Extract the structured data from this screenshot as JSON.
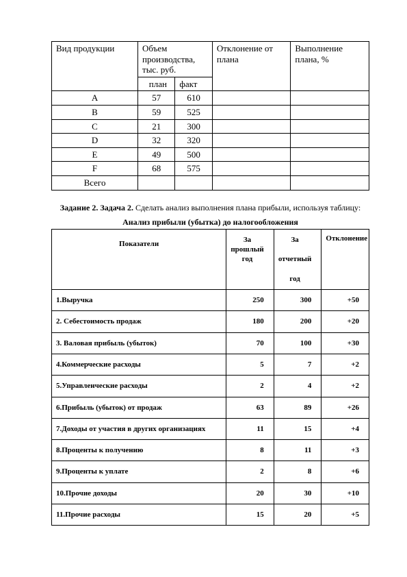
{
  "table1": {
    "headers": {
      "product": "Вид продукции",
      "volume": "Объем производства, тыс. руб.",
      "plan": "   план",
      "fact": "факт",
      "deviation": "Отклонение от плана",
      "percent": "Выполнение плана, %"
    },
    "rows": [
      {
        "p": "A",
        "plan": "57",
        "fact": "610"
      },
      {
        "p": "B",
        "plan": "59",
        "fact": "525"
      },
      {
        "p": "C",
        "plan": "21",
        "fact": "300"
      },
      {
        "p": "D",
        "plan": "32",
        "fact": "320"
      },
      {
        "p": "E",
        "plan": "49",
        "fact": "500"
      },
      {
        "p": "F",
        "plan": "68",
        "fact": "575"
      }
    ],
    "total": "Всего"
  },
  "task_line_bold": "Задание 2. Задача 2.",
  "task_line_rest": "Сделать анализ выполнения плана прибыли, используя таблицу:",
  "table2_title": "Анализ прибыли (убытка) до налогообложения",
  "table2": {
    "headers": {
      "indicator": "Показатели",
      "prev": "За прошлый год",
      "curr_l1": "За",
      "curr_l2": "отчетный",
      "curr_l3": "год",
      "dev": "Отклонение"
    },
    "rows": [
      {
        "n": "1.Выручка",
        "a": "250",
        "b": "300",
        "d": "+50"
      },
      {
        "n": "2. Себестоимость продаж",
        "a": "180",
        "b": "200",
        "d": "+20"
      },
      {
        "n": "3. Валовая прибыль (убыток)",
        "a": "70",
        "b": "100",
        "d": "+30"
      },
      {
        "n": "4.Коммерческие расходы",
        "a": "5",
        "b": "7",
        "d": "+2"
      },
      {
        "n": "5.Управленческие расходы",
        "a": "2",
        "b": "4",
        "d": "+2"
      },
      {
        "n": "6.Прибыль (убыток) от продаж",
        "a": "63",
        "b": "89",
        "d": "+26"
      },
      {
        "n": "7.Доходы от участия в других организациях",
        "a": "11",
        "b": "15",
        "d": "+4"
      },
      {
        "n": "8.Проценты к получению",
        "a": "8",
        "b": "11",
        "d": "+3"
      },
      {
        "n": "9.Проценты к уплате",
        "a": "2",
        "b": "8",
        "d": "+6"
      },
      {
        "n": "10.Прочие доходы",
        "a": "20",
        "b": "30",
        "d": "+10"
      },
      {
        "n": "11.Прочие расходы",
        "a": "15",
        "b": "20",
        "d": "+5"
      }
    ]
  }
}
